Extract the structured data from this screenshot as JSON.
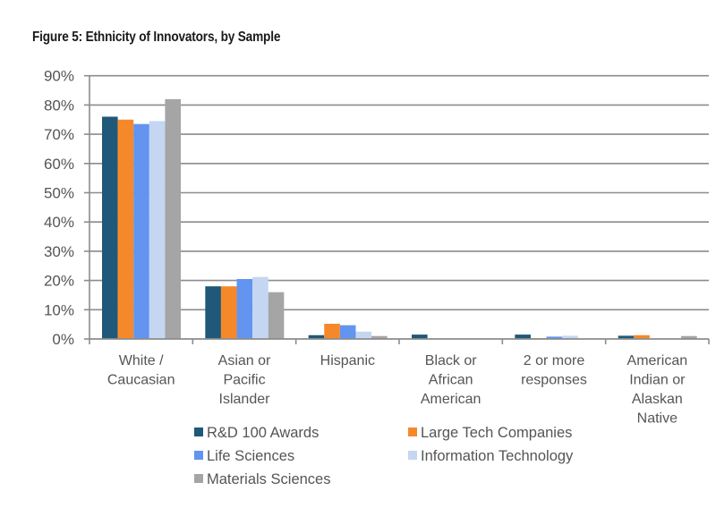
{
  "figure": {
    "title": "Figure 5: Ethnicity of Innovators, by Sample"
  },
  "chart_data": {
    "type": "bar",
    "title": "Figure 5: Ethnicity of Innovators, by Sample",
    "xlabel": "",
    "ylabel": "",
    "ylim": [
      0,
      90
    ],
    "yticks": [
      0,
      10,
      20,
      30,
      40,
      50,
      60,
      70,
      80,
      90
    ],
    "ytick_labels": [
      "0%",
      "10%",
      "20%",
      "30%",
      "40%",
      "50%",
      "60%",
      "70%",
      "80%",
      "90%"
    ],
    "grid": true,
    "legend_position": "bottom",
    "categories": [
      [
        "White /",
        "Caucasian"
      ],
      [
        "Asian or",
        "Pacific",
        "Islander"
      ],
      [
        "Hispanic"
      ],
      [
        "Black or",
        "African",
        "American"
      ],
      [
        "2 or more",
        "responses"
      ],
      [
        "American",
        "Indian or",
        "Alaskan",
        "Native"
      ]
    ],
    "series": [
      {
        "name": "R&D 100 Awards",
        "color": "#1f5878",
        "values": [
          76,
          18,
          1.3,
          1.5,
          1.5,
          1.1
        ]
      },
      {
        "name": "Large Tech Companies",
        "color": "#f5892a",
        "values": [
          75,
          18,
          5.2,
          0,
          0.3,
          1.3
        ]
      },
      {
        "name": "Life Sciences",
        "color": "#6294f0",
        "values": [
          73.5,
          20.5,
          4.7,
          0,
          0.8,
          0
        ]
      },
      {
        "name": "Information Technology",
        "color": "#c5d6f2",
        "values": [
          74.5,
          21.2,
          2.5,
          0,
          1.1,
          0
        ]
      },
      {
        "name": "Materials Sciences",
        "color": "#a5a5a5",
        "values": [
          82,
          16,
          1,
          0,
          0,
          1
        ]
      }
    ],
    "axis_color": "#8c8c8c",
    "gridline_color": "#8c8c8c"
  }
}
